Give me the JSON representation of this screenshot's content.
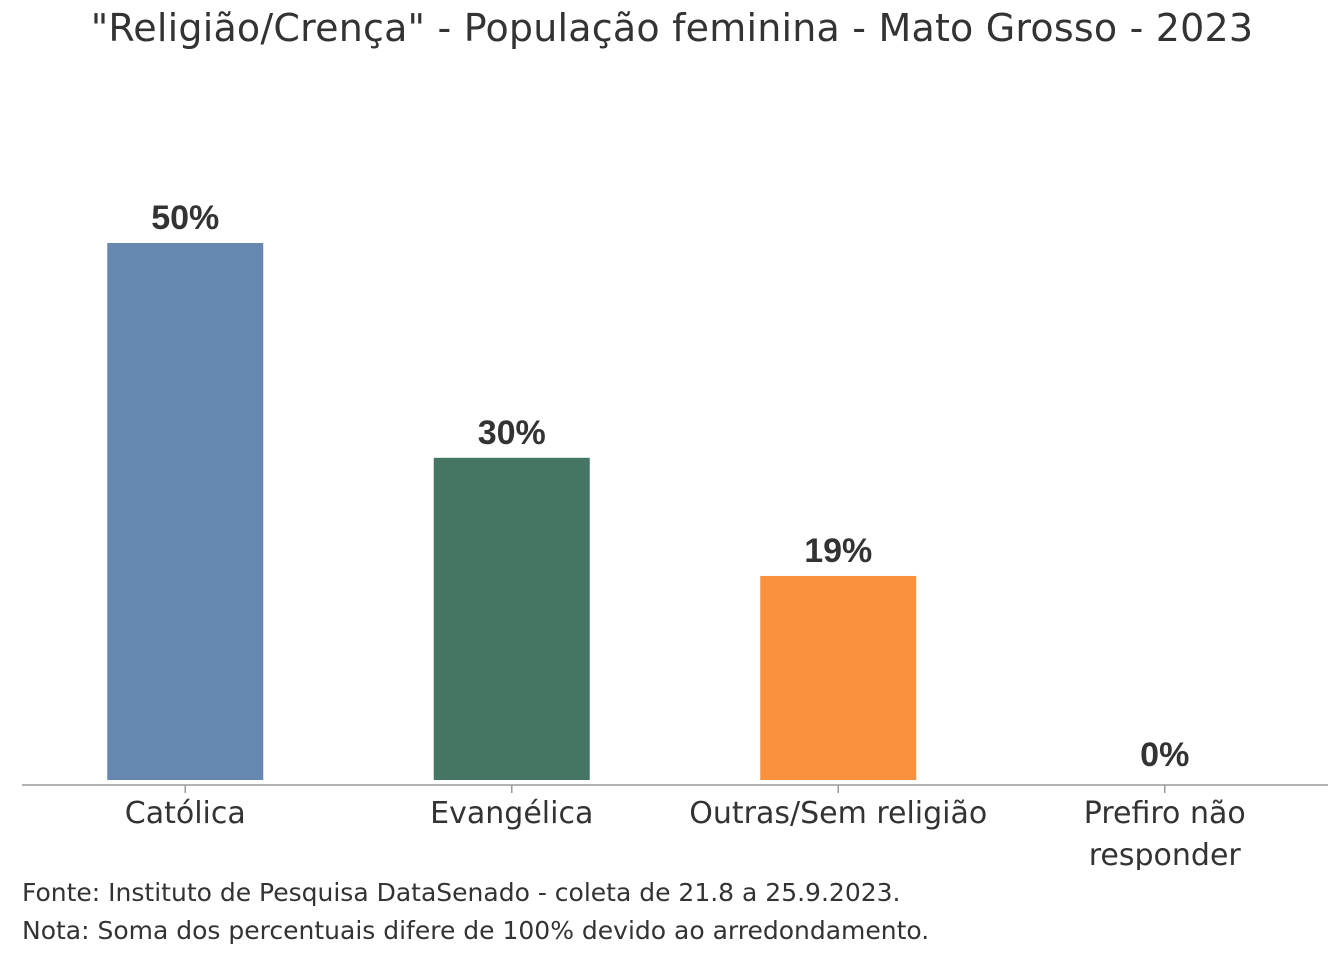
{
  "chart_data": {
    "type": "bar",
    "title": "\"Religião/Crença\" - População feminina - Mato Grosso - 2023",
    "categories": [
      "Católica",
      "Evangélica",
      "Outras/Sem religião",
      "Prefiro não responder"
    ],
    "category_lines": [
      [
        "Católica"
      ],
      [
        "Evangélica"
      ],
      [
        "Outras/Sem religião"
      ],
      [
        "Prefiro não",
        "responder"
      ]
    ],
    "values": [
      50,
      30,
      19,
      0
    ],
    "value_labels": [
      "50%",
      "30%",
      "19%",
      "0%"
    ],
    "colors": [
      "#6688b0",
      "#457563",
      "#f9913e",
      "#cccccc"
    ],
    "ylim": [
      0,
      50
    ],
    "xlabel": "",
    "ylabel": "",
    "grid": false,
    "legend": "none"
  },
  "footnotes": {
    "source": "Fonte: Instituto de Pesquisa DataSenado - coleta de 21.8 a 25.9.2023.",
    "note": "Nota: Soma dos percentuais difere de 100% devido ao arredondamento."
  }
}
